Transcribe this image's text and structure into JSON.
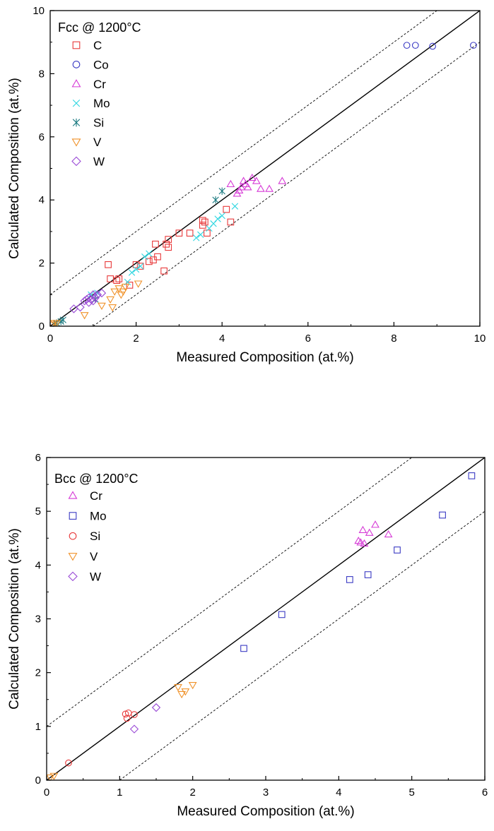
{
  "chart_data": [
    {
      "type": "scatter",
      "xlabel": "Measured Composition (at.%)",
      "ylabel": "Calculated Composition (at.%)",
      "xlim": [
        0,
        10
      ],
      "ylim": [
        0,
        10
      ],
      "xticks": [
        "0",
        "2",
        "4",
        "6",
        "8",
        "10"
      ],
      "yticks": [
        "0",
        "2",
        "4",
        "6",
        "8",
        "10"
      ],
      "grid": false,
      "legend_position": "top-left",
      "legend_title": "Fcc @ 1200°C",
      "reference_lines": [
        {
          "style": "solid",
          "color": "#000000",
          "x": [
            0,
            10
          ],
          "y": [
            0,
            10
          ]
        },
        {
          "style": "dashed",
          "color": "#000000",
          "x": [
            0,
            9
          ],
          "y": [
            1,
            10
          ]
        },
        {
          "style": "dashed",
          "color": "#000000",
          "x": [
            1,
            10
          ],
          "y": [
            0,
            9
          ]
        }
      ],
      "series": [
        {
          "name": "C",
          "marker": "square",
          "color": "#e8393a",
          "points": [
            [
              1.35,
              1.95
            ],
            [
              1.4,
              1.5
            ],
            [
              1.55,
              1.45
            ],
            [
              1.6,
              1.5
            ],
            [
              2.0,
              1.95
            ],
            [
              2.1,
              1.9
            ],
            [
              2.3,
              2.05
            ],
            [
              2.4,
              2.1
            ],
            [
              2.45,
              2.6
            ],
            [
              2.5,
              2.2
            ],
            [
              2.65,
              1.75
            ],
            [
              2.7,
              2.6
            ],
            [
              2.75,
              2.5
            ],
            [
              2.75,
              2.75
            ],
            [
              3.0,
              2.95
            ],
            [
              3.25,
              2.95
            ],
            [
              3.55,
              3.2
            ],
            [
              3.55,
              3.35
            ],
            [
              3.6,
              3.3
            ],
            [
              3.65,
              2.95
            ],
            [
              4.1,
              3.7
            ],
            [
              4.2,
              3.3
            ],
            [
              1.85,
              1.3
            ]
          ]
        },
        {
          "name": "Co",
          "marker": "circle",
          "color": "#3b3bc4",
          "points": [
            [
              8.3,
              8.9
            ],
            [
              8.5,
              8.9
            ],
            [
              8.9,
              8.87
            ],
            [
              9.85,
              8.9
            ]
          ]
        },
        {
          "name": "Cr",
          "marker": "triangle-up",
          "color": "#d63ad6",
          "points": [
            [
              4.2,
              4.5
            ],
            [
              4.35,
              4.2
            ],
            [
              4.45,
              4.4
            ],
            [
              4.5,
              4.6
            ],
            [
              4.55,
              4.5
            ],
            [
              4.6,
              4.4
            ],
            [
              4.7,
              4.7
            ],
            [
              4.8,
              4.6
            ],
            [
              4.9,
              4.35
            ],
            [
              5.1,
              4.35
            ],
            [
              5.4,
              4.6
            ],
            [
              4.4,
              4.3
            ]
          ]
        },
        {
          "name": "Mo",
          "marker": "x",
          "color": "#2ed6e0",
          "points": [
            [
              1.8,
              1.4
            ],
            [
              1.9,
              1.7
            ],
            [
              2.0,
              1.8
            ],
            [
              2.1,
              1.9
            ],
            [
              2.2,
              2.2
            ],
            [
              2.3,
              2.3
            ],
            [
              3.4,
              2.8
            ],
            [
              3.5,
              2.9
            ],
            [
              3.7,
              3.1
            ],
            [
              3.8,
              3.25
            ],
            [
              3.9,
              3.4
            ],
            [
              4.0,
              3.5
            ],
            [
              4.3,
              3.8
            ],
            [
              0.95,
              1.0
            ],
            [
              1.1,
              1.05
            ]
          ]
        },
        {
          "name": "Si",
          "marker": "asterisk",
          "color": "#1a7a80",
          "points": [
            [
              0.1,
              0.05
            ],
            [
              0.15,
              0.1
            ],
            [
              0.25,
              0.15
            ],
            [
              0.3,
              0.2
            ],
            [
              3.85,
              4.0
            ],
            [
              4.0,
              4.28
            ],
            [
              1.05,
              0.85
            ]
          ]
        },
        {
          "name": "V",
          "marker": "triangle-down",
          "color": "#f0922a",
          "points": [
            [
              0.05,
              0.05
            ],
            [
              0.1,
              0.1
            ],
            [
              0.15,
              0.1
            ],
            [
              0.8,
              0.35
            ],
            [
              1.2,
              0.65
            ],
            [
              1.4,
              0.85
            ],
            [
              1.45,
              0.6
            ],
            [
              1.5,
              1.1
            ],
            [
              1.6,
              1.2
            ],
            [
              1.7,
              1.1
            ],
            [
              1.75,
              1.25
            ],
            [
              2.05,
              1.35
            ],
            [
              1.65,
              1.0
            ]
          ]
        },
        {
          "name": "W",
          "marker": "diamond",
          "color": "#9a4ad6",
          "points": [
            [
              0.55,
              0.55
            ],
            [
              0.7,
              0.6
            ],
            [
              0.8,
              0.8
            ],
            [
              0.85,
              0.85
            ],
            [
              0.9,
              0.9
            ],
            [
              0.95,
              0.85
            ],
            [
              1.0,
              1.0
            ],
            [
              1.05,
              0.9
            ],
            [
              1.1,
              1.0
            ],
            [
              1.2,
              1.05
            ],
            [
              0.9,
              0.75
            ],
            [
              1.0,
              0.8
            ]
          ]
        }
      ]
    },
    {
      "type": "scatter",
      "xlabel": "Measured Composition (at.%)",
      "ylabel": "Calculated Composition (at.%)",
      "xlim": [
        0,
        6
      ],
      "ylim": [
        0,
        6
      ],
      "xticks": [
        "0",
        "1",
        "2",
        "3",
        "4",
        "5",
        "6"
      ],
      "yticks": [
        "0",
        "1",
        "2",
        "3",
        "4",
        "5",
        "6"
      ],
      "grid": false,
      "legend_position": "top-left",
      "legend_title": "Bcc @ 1200°C",
      "reference_lines": [
        {
          "style": "solid",
          "color": "#000000",
          "x": [
            0,
            6
          ],
          "y": [
            0,
            6
          ]
        },
        {
          "style": "dashed",
          "color": "#000000",
          "x": [
            0,
            5
          ],
          "y": [
            1,
            6
          ]
        },
        {
          "style": "dashed",
          "color": "#000000",
          "x": [
            1,
            6
          ],
          "y": [
            0,
            5
          ]
        }
      ],
      "series": [
        {
          "name": "Cr",
          "marker": "triangle-up",
          "color": "#d63ad6",
          "points": [
            [
              4.27,
              4.45
            ],
            [
              4.3,
              4.42
            ],
            [
              4.33,
              4.65
            ],
            [
              4.35,
              4.4
            ],
            [
              4.42,
              4.6
            ],
            [
              4.5,
              4.75
            ],
            [
              4.68,
              4.57
            ]
          ]
        },
        {
          "name": "Mo",
          "marker": "square",
          "color": "#3b3bc4",
          "points": [
            [
              2.7,
              2.45
            ],
            [
              3.22,
              3.08
            ],
            [
              4.15,
              3.73
            ],
            [
              4.4,
              3.82
            ],
            [
              4.8,
              4.28
            ],
            [
              5.42,
              4.93
            ],
            [
              5.82,
              5.66
            ]
          ]
        },
        {
          "name": "Si",
          "marker": "circle",
          "color": "#e8393a",
          "points": [
            [
              0.3,
              0.32
            ],
            [
              1.08,
              1.23
            ],
            [
              1.12,
              1.25
            ],
            [
              1.1,
              1.15
            ],
            [
              1.2,
              1.22
            ]
          ]
        },
        {
          "name": "V",
          "marker": "triangle-down",
          "color": "#f0922a",
          "points": [
            [
              0.05,
              0.05
            ],
            [
              0.1,
              0.08
            ],
            [
              1.8,
              1.73
            ],
            [
              1.85,
              1.6
            ],
            [
              1.9,
              1.65
            ],
            [
              2.0,
              1.77
            ]
          ]
        },
        {
          "name": "W",
          "marker": "diamond",
          "color": "#9a4ad6",
          "points": [
            [
              1.2,
              0.95
            ],
            [
              1.5,
              1.35
            ]
          ]
        }
      ]
    }
  ]
}
